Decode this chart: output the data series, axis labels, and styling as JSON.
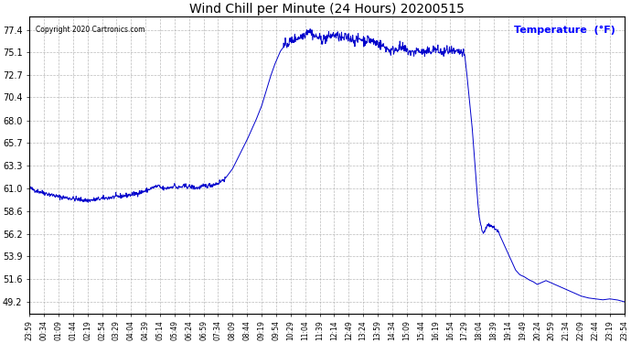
{
  "title": "Wind Chill per Minute (24 Hours) 20200515",
  "copyright_text": "Copyright 2020 Cartronics.com",
  "legend_label": "Temperature  (°F)",
  "y_ticks": [
    49.2,
    51.6,
    53.9,
    56.2,
    58.6,
    61.0,
    63.3,
    65.7,
    68.0,
    70.4,
    72.7,
    75.1,
    77.4
  ],
  "y_min": 48.0,
  "y_max": 78.8,
  "line_color": "#0000cc",
  "background_color": "#ffffff",
  "grid_color": "#aaaaaa",
  "title_color": "#000000",
  "legend_color": "#0000ff",
  "copyright_color": "#000000",
  "x_tick_labels": [
    "23:59",
    "00:34",
    "01:09",
    "01:44",
    "02:19",
    "02:54",
    "03:29",
    "04:04",
    "04:39",
    "05:14",
    "05:49",
    "06:24",
    "06:59",
    "07:34",
    "08:09",
    "08:44",
    "09:19",
    "09:54",
    "10:29",
    "11:04",
    "11:39",
    "12:14",
    "12:49",
    "13:24",
    "13:59",
    "14:34",
    "15:09",
    "15:44",
    "16:19",
    "16:54",
    "17:29",
    "18:04",
    "18:39",
    "19:14",
    "19:49",
    "20:24",
    "20:59",
    "21:34",
    "22:09",
    "22:44",
    "23:19",
    "23:54"
  ],
  "n_ticks": 42,
  "segment_points": [
    [
      0,
      61.0
    ],
    [
      0.5,
      60.7
    ],
    [
      1.0,
      60.5
    ],
    [
      1.5,
      60.3
    ],
    [
      2.0,
      60.1
    ],
    [
      2.5,
      60.0
    ],
    [
      3.0,
      59.9
    ],
    [
      3.5,
      59.8
    ],
    [
      4.0,
      59.7
    ],
    [
      4.5,
      59.8
    ],
    [
      5.0,
      59.9
    ],
    [
      5.5,
      60.0
    ],
    [
      6.0,
      60.1
    ],
    [
      6.5,
      60.2
    ],
    [
      7.0,
      60.3
    ],
    [
      7.5,
      60.5
    ],
    [
      8.0,
      60.7
    ],
    [
      8.3,
      60.9
    ],
    [
      8.6,
      61.1
    ],
    [
      8.9,
      61.2
    ],
    [
      9.1,
      61.0
    ],
    [
      9.3,
      60.9
    ],
    [
      9.5,
      61.0
    ],
    [
      9.8,
      61.1
    ],
    [
      10.0,
      61.3
    ],
    [
      10.2,
      61.0
    ],
    [
      10.4,
      61.1
    ],
    [
      10.8,
      61.2
    ],
    [
      11.2,
      61.1
    ],
    [
      11.6,
      61.0
    ],
    [
      12.0,
      61.2
    ],
    [
      12.5,
      61.3
    ],
    [
      13.0,
      61.5
    ],
    [
      13.5,
      62.0
    ],
    [
      14.0,
      63.0
    ],
    [
      14.5,
      64.5
    ],
    [
      15.0,
      66.0
    ],
    [
      15.3,
      67.0
    ],
    [
      15.6,
      68.0
    ],
    [
      16.0,
      69.5
    ],
    [
      16.3,
      71.0
    ],
    [
      16.6,
      72.5
    ],
    [
      16.9,
      73.8
    ],
    [
      17.1,
      74.5
    ],
    [
      17.3,
      75.2
    ],
    [
      17.5,
      75.6
    ],
    [
      17.7,
      75.9
    ],
    [
      17.9,
      76.1
    ],
    [
      18.1,
      76.3
    ],
    [
      18.3,
      76.5
    ],
    [
      18.5,
      76.6
    ],
    [
      18.8,
      76.8
    ],
    [
      19.0,
      77.0
    ],
    [
      19.2,
      77.4
    ],
    [
      19.4,
      77.2
    ],
    [
      19.6,
      76.8
    ],
    [
      19.9,
      76.6
    ],
    [
      20.2,
      76.4
    ],
    [
      20.5,
      76.6
    ],
    [
      20.8,
      76.8
    ],
    [
      21.0,
      76.9
    ],
    [
      21.3,
      76.7
    ],
    [
      21.6,
      76.5
    ],
    [
      21.9,
      76.7
    ],
    [
      22.2,
      76.5
    ],
    [
      22.5,
      76.3
    ],
    [
      22.8,
      76.5
    ],
    [
      23.1,
      76.3
    ],
    [
      23.4,
      76.4
    ],
    [
      23.7,
      76.2
    ],
    [
      24.0,
      76.0
    ],
    [
      24.3,
      75.8
    ],
    [
      24.6,
      75.5
    ],
    [
      24.9,
      75.2
    ],
    [
      25.2,
      75.4
    ],
    [
      25.5,
      75.6
    ],
    [
      25.8,
      75.4
    ],
    [
      26.1,
      75.2
    ],
    [
      26.4,
      75.0
    ],
    [
      26.7,
      75.3
    ],
    [
      27.0,
      75.1
    ],
    [
      27.3,
      75.0
    ],
    [
      27.6,
      75.2
    ],
    [
      27.9,
      75.4
    ],
    [
      28.2,
      75.2
    ],
    [
      28.5,
      75.0
    ],
    [
      28.8,
      75.3
    ],
    [
      29.1,
      75.1
    ],
    [
      29.4,
      75.0
    ],
    [
      29.6,
      75.1
    ],
    [
      29.8,
      75.0
    ],
    [
      30.0,
      74.8
    ],
    [
      30.1,
      73.5
    ],
    [
      30.2,
      72.0
    ],
    [
      30.3,
      70.5
    ],
    [
      30.4,
      69.0
    ],
    [
      30.5,
      67.5
    ],
    [
      30.6,
      65.5
    ],
    [
      30.7,
      63.5
    ],
    [
      30.8,
      61.5
    ],
    [
      30.9,
      59.5
    ],
    [
      31.0,
      58.0
    ],
    [
      31.1,
      57.2
    ],
    [
      31.2,
      56.5
    ],
    [
      31.3,
      56.3
    ],
    [
      31.5,
      57.0
    ],
    [
      31.7,
      57.2
    ],
    [
      31.9,
      57.0
    ],
    [
      32.1,
      56.8
    ],
    [
      32.3,
      56.5
    ],
    [
      32.6,
      55.5
    ],
    [
      32.9,
      54.5
    ],
    [
      33.2,
      53.5
    ],
    [
      33.5,
      52.5
    ],
    [
      33.8,
      52.0
    ],
    [
      34.1,
      51.8
    ],
    [
      34.4,
      51.5
    ],
    [
      34.7,
      51.3
    ],
    [
      35.0,
      51.0
    ],
    [
      35.3,
      51.2
    ],
    [
      35.6,
      51.4
    ],
    [
      35.9,
      51.2
    ],
    [
      36.2,
      51.0
    ],
    [
      36.5,
      50.8
    ],
    [
      36.8,
      50.6
    ],
    [
      37.1,
      50.4
    ],
    [
      37.4,
      50.2
    ],
    [
      37.7,
      50.0
    ],
    [
      38.0,
      49.8
    ],
    [
      38.5,
      49.6
    ],
    [
      39.0,
      49.5
    ],
    [
      39.5,
      49.4
    ],
    [
      40.0,
      49.5
    ],
    [
      40.5,
      49.4
    ],
    [
      41.0,
      49.2
    ]
  ]
}
